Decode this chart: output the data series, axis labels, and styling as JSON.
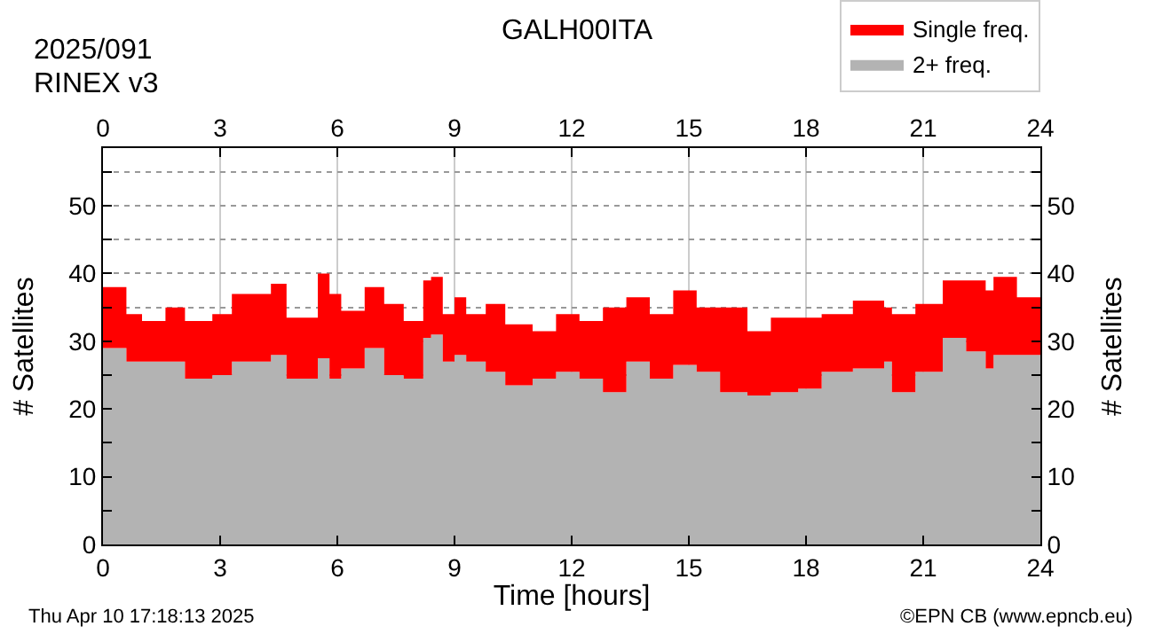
{
  "chart_data": {
    "type": "area",
    "stacked": true,
    "title": "GALH00ITA",
    "xlabel": "Time [hours]",
    "ylabel": "# Satellites",
    "y2label": "# Satellites",
    "annotations": [
      "2025/091",
      "RINEX v3",
      "Thu Apr 10 17:18:13 2025",
      "©EPN CB (www.epncb.eu)"
    ],
    "x": [
      0,
      0.6,
      1.0,
      1.6,
      2.1,
      2.8,
      3.3,
      4.3,
      4.7,
      5.5,
      5.8,
      6.1,
      6.7,
      7.2,
      7.7,
      8.2,
      8.4,
      8.7,
      9.0,
      9.3,
      9.8,
      10.3,
      11.0,
      11.6,
      12.2,
      12.8,
      13.4,
      14.0,
      14.6,
      15.2,
      15.8,
      16.5,
      17.1,
      17.8,
      18.4,
      19.2,
      20.0,
      20.2,
      20.8,
      21.5,
      22.1,
      22.6,
      22.8,
      23.4,
      24
    ],
    "series": [
      {
        "name": "2+ freq.",
        "color": "#b3b3b3",
        "values": [
          29,
          27,
          27,
          27,
          24.5,
          25,
          27,
          28,
          24.5,
          27.5,
          24.5,
          26,
          29,
          25,
          24.5,
          30.5,
          31,
          27,
          28,
          27,
          25.5,
          23.5,
          24.5,
          25.5,
          24.5,
          22.5,
          27,
          24.5,
          26.5,
          25.5,
          22.5,
          22,
          22.5,
          23,
          25.5,
          26,
          27,
          22.5,
          25.5,
          30.5,
          28.5,
          26,
          28,
          28,
          30.5
        ]
      },
      {
        "name": "Single freq.",
        "color": "#ff0000",
        "values": [
          9,
          7,
          6,
          8,
          8.5,
          9,
          10,
          10.5,
          9,
          12.5,
          12.5,
          8.5,
          9,
          10.5,
          8.5,
          8.5,
          8.5,
          7,
          8.5,
          7,
          10,
          9,
          7,
          8.5,
          8.5,
          12.5,
          9.5,
          9.5,
          11,
          9.5,
          12.5,
          9.5,
          11,
          10.5,
          8.5,
          10,
          8,
          11.5,
          10,
          8.5,
          10.5,
          11.5,
          11.5,
          8.5,
          7
        ]
      }
    ],
    "xlim": [
      0,
      24
    ],
    "xticks": [
      0,
      3,
      6,
      9,
      12,
      15,
      18,
      21,
      24
    ],
    "x2lim": [
      0,
      24
    ],
    "x2ticks": [
      0,
      3,
      6,
      9,
      12,
      15,
      18,
      21,
      24
    ],
    "ylim": [
      0,
      58.5
    ],
    "yticks": [
      0,
      {
        "value": 5,
        "label": null
      },
      10,
      {
        "value": 15,
        "label": null
      },
      20,
      {
        "value": 25,
        "label": null
      },
      30,
      {
        "value": 35,
        "label": null
      },
      40,
      {
        "value": 45,
        "label": null
      },
      50,
      {
        "value": 55,
        "label": null
      }
    ],
    "y2lim": [
      0,
      58.5
    ],
    "y2ticks": [
      0,
      {
        "value": 5,
        "label": null
      },
      10,
      {
        "value": 15,
        "label": null
      },
      20,
      {
        "value": 25,
        "label": null
      },
      30,
      {
        "value": 35,
        "label": null
      },
      40,
      {
        "value": 45,
        "label": null
      },
      50,
      {
        "value": 55,
        "label": null
      }
    ],
    "grid": true,
    "legend": "top right"
  }
}
